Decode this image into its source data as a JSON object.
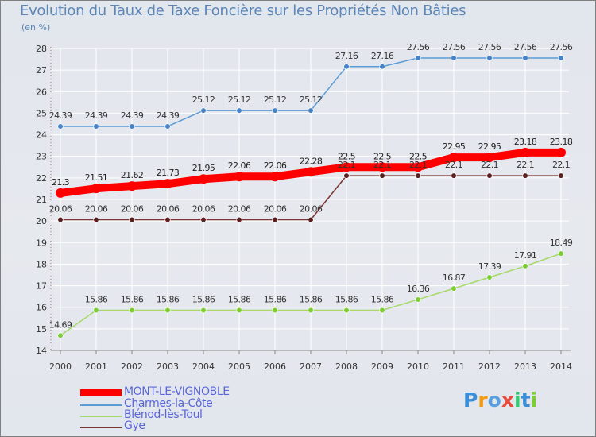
{
  "title": "Evolution du Taux de Taxe Foncière sur les Propriétés Non Bâties",
  "unit_label": "(en %)",
  "logo": "Proxiti",
  "colors": {
    "mont": "#ff0000",
    "charmes": "#5b9bd5",
    "charmes_dot": "#4682c6",
    "blenod": "#a6d96a",
    "blenod_dot": "#7ccd32",
    "gye": "#7a3434",
    "gye_dot": "#5a2020",
    "axis": "#888888",
    "grid": "#ffffff",
    "text": "#333333",
    "legend_text": "#5a66d8"
  },
  "chart_data": {
    "type": "line",
    "title": "Evolution du Taux de Taxe Foncière sur les Propriétés Non Bâties",
    "ylabel": "(en %)",
    "xlabel": "",
    "x": [
      "2000",
      "2001",
      "2002",
      "2003",
      "2004",
      "2005",
      "2006",
      "2007",
      "2008",
      "2009",
      "2010",
      "2011",
      "2012",
      "2013",
      "2014"
    ],
    "ylim": [
      14,
      28
    ],
    "yticks": [
      "14",
      "15",
      "16",
      "17",
      "18",
      "19",
      "20",
      "21",
      "22",
      "23",
      "24",
      "25",
      "26",
      "27",
      "28"
    ],
    "grid": true,
    "legend_position": "bottom-left",
    "series": [
      {
        "key": "mont",
        "name": "MONT-LE-VIGNOBLE",
        "values": [
          21.3,
          21.51,
          21.62,
          21.73,
          21.95,
          22.06,
          22.06,
          22.28,
          22.5,
          22.5,
          22.5,
          22.95,
          22.95,
          23.18,
          23.18
        ],
        "labels": [
          "21.3",
          "21.51",
          "21.62",
          "21.73",
          "21.95",
          "22.06",
          "22.06",
          "22.28",
          "22.5",
          "22.5",
          "22.5",
          "22.95",
          "22.95",
          "23.18",
          "23.18"
        ]
      },
      {
        "key": "charmes",
        "name": "Charmes-la-Côte",
        "values": [
          24.39,
          24.39,
          24.39,
          24.39,
          25.12,
          25.12,
          25.12,
          25.12,
          27.16,
          27.16,
          27.56,
          27.56,
          27.56,
          27.56,
          27.56
        ],
        "labels": [
          "24.39",
          "24.39",
          "24.39",
          "24.39",
          "25.12",
          "25.12",
          "25.12",
          "25.12",
          "27.16",
          "27.16",
          "27.56",
          "27.56",
          "27.56",
          "27.56",
          "27.56"
        ]
      },
      {
        "key": "blenod",
        "name": "Blénod-lès-Toul",
        "values": [
          14.69,
          15.86,
          15.86,
          15.86,
          15.86,
          15.86,
          15.86,
          15.86,
          15.86,
          15.86,
          16.36,
          16.87,
          17.39,
          17.91,
          18.49
        ],
        "labels": [
          "14.69",
          "15.86",
          "15.86",
          "15.86",
          "15.86",
          "15.86",
          "15.86",
          "15.86",
          "15.86",
          "15.86",
          "16.36",
          "16.87",
          "17.39",
          "17.91",
          "18.49"
        ]
      },
      {
        "key": "gye",
        "name": "Gye",
        "values": [
          20.06,
          20.06,
          20.06,
          20.06,
          20.06,
          20.06,
          20.06,
          20.06,
          22.1,
          22.1,
          22.1,
          22.1,
          22.1,
          22.1,
          22.1
        ],
        "labels": [
          "20.06",
          "20.06",
          "20.06",
          "20.06",
          "20.06",
          "20.06",
          "20.06",
          "20.06",
          "22.1",
          "22.1",
          "22.1",
          "22.1",
          "22.1",
          "22.1",
          "22.1"
        ]
      }
    ]
  }
}
